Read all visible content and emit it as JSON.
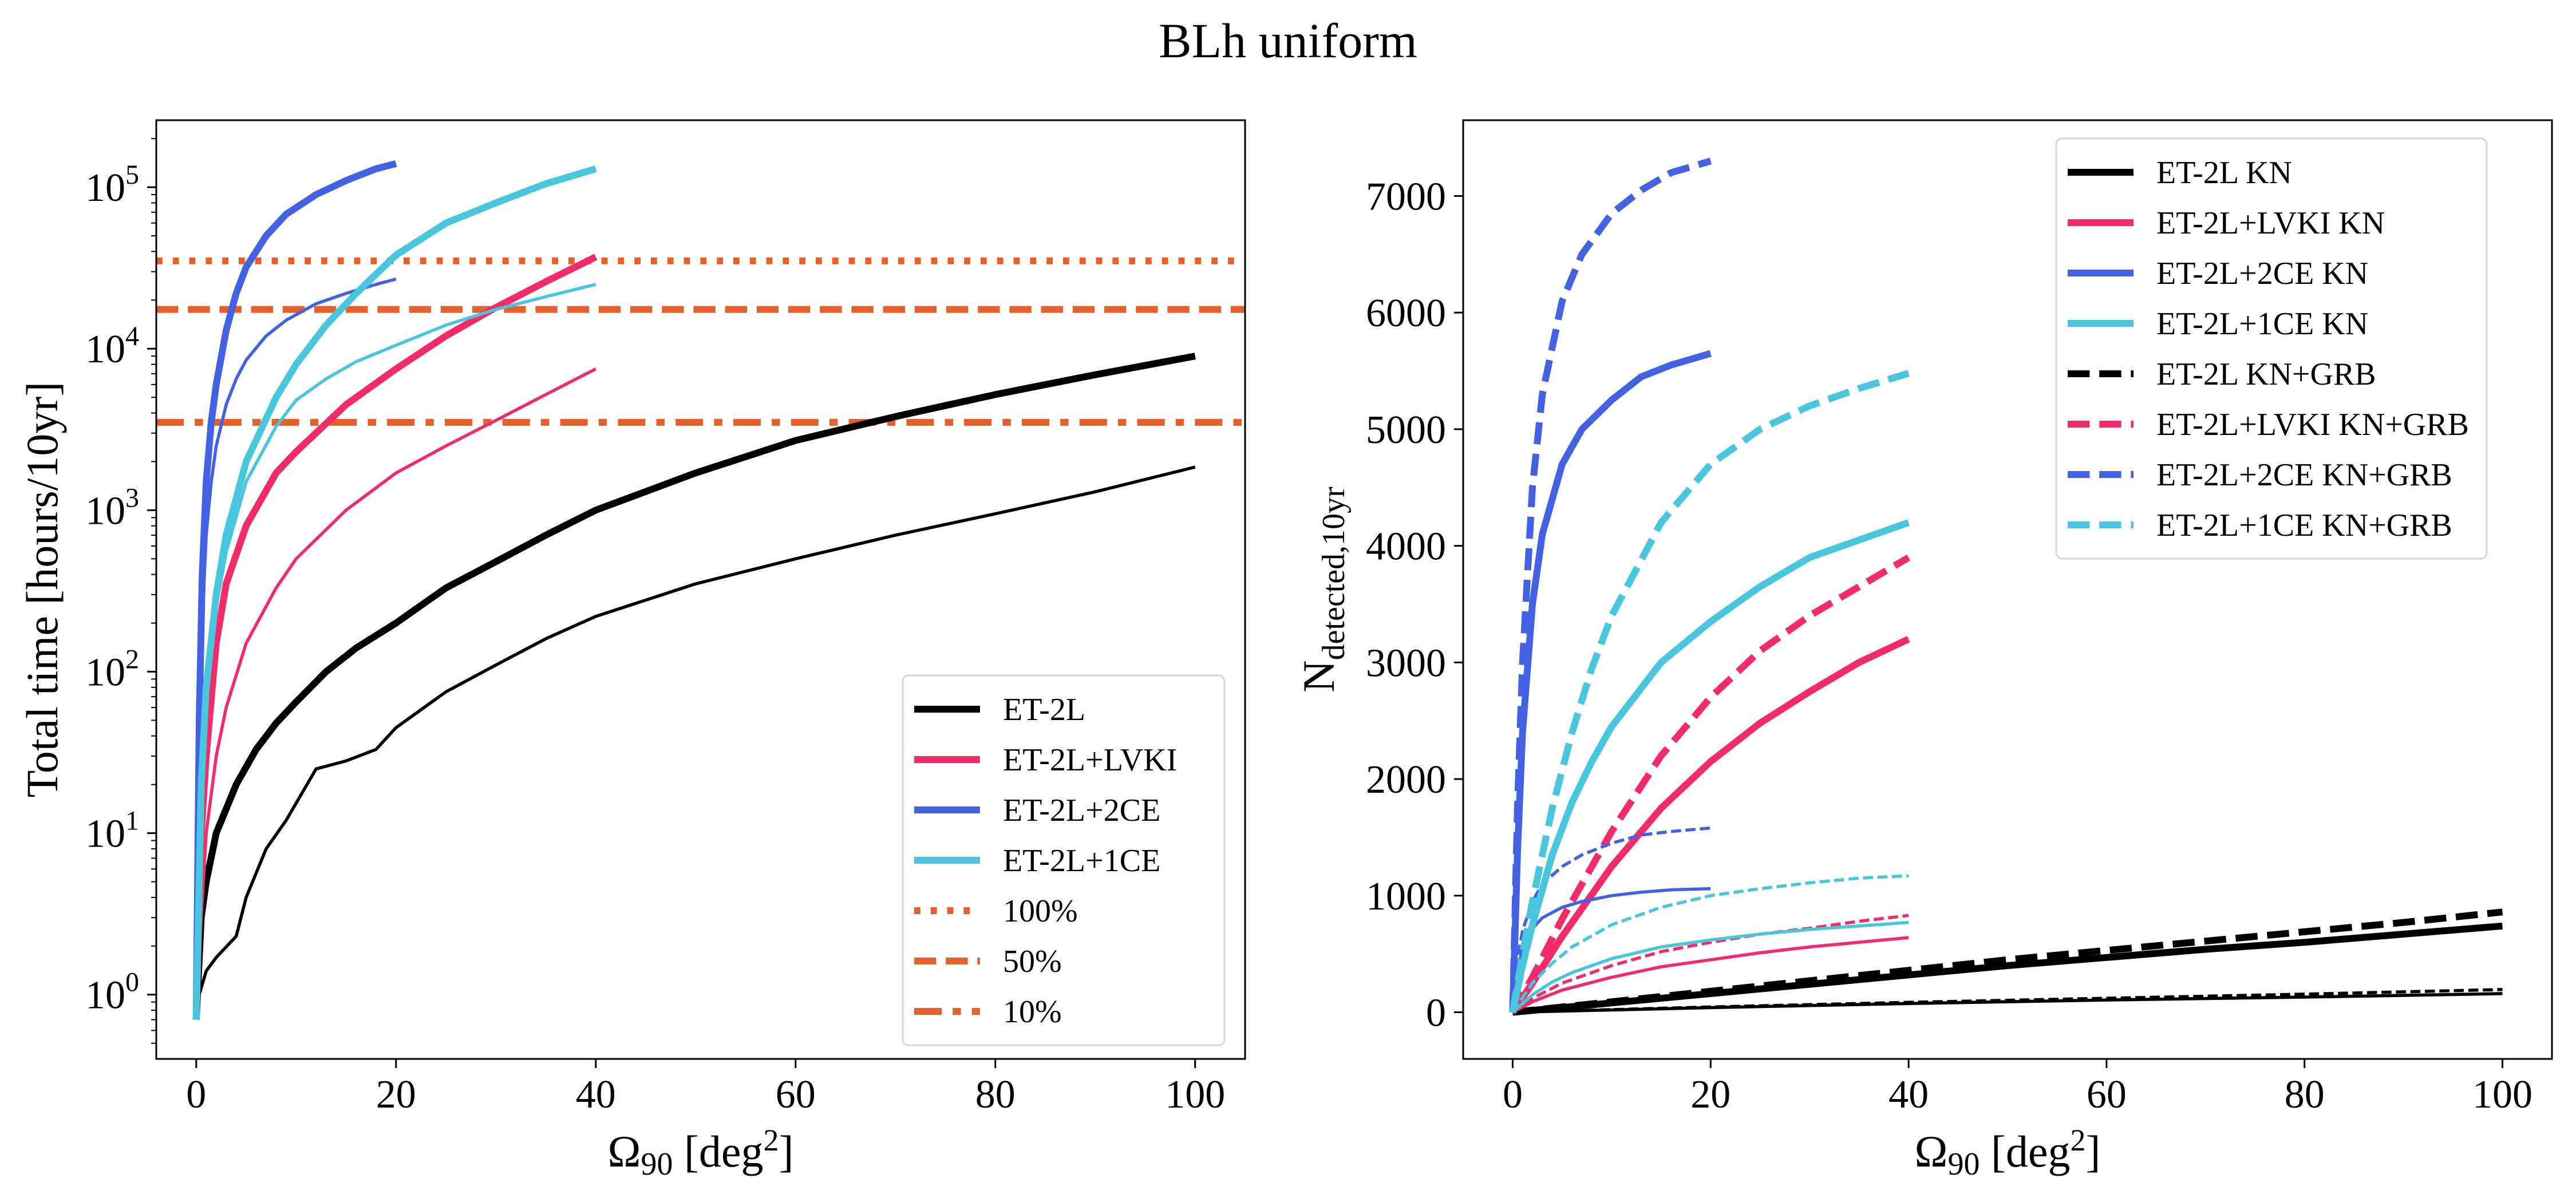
{
  "figure": {
    "title": "BLh uniform"
  },
  "colors": {
    "black": "#000000",
    "pink": "#f22c6a",
    "blue": "#4361e3",
    "cyan": "#48c6dd",
    "orange": "#e5602a"
  },
  "chart_data": [
    {
      "type": "line",
      "title": "",
      "xlabel": "Ω90 [deg²]",
      "ylabel": "Total time [hours/10yr]",
      "yscale": "log",
      "xlim": [
        -4,
        105
      ],
      "ylim": [
        0.4,
        260000
      ],
      "xticks": [
        0,
        20,
        40,
        60,
        80,
        100
      ],
      "xtick_labels": [
        "0",
        "20",
        "40",
        "60",
        "80",
        "100"
      ],
      "ytick_exponents": [
        0,
        1,
        2,
        3,
        4,
        5
      ],
      "legend": {
        "position": "lower right",
        "entries": [
          {
            "label": "ET-2L",
            "color": "black",
            "style": "solid"
          },
          {
            "label": "ET-2L+LVKI",
            "color": "pink",
            "style": "solid"
          },
          {
            "label": "ET-2L+2CE",
            "color": "blue",
            "style": "solid"
          },
          {
            "label": "ET-2L+1CE",
            "color": "cyan",
            "style": "solid"
          },
          {
            "label": "100%",
            "color": "orange",
            "style": "dotted"
          },
          {
            "label": "50%",
            "color": "orange",
            "style": "dashed"
          },
          {
            "label": "10%",
            "color": "orange",
            "style": "dashdot"
          }
        ]
      },
      "hlines": [
        {
          "name": "100%",
          "y": 35000,
          "color": "orange",
          "style": "dotted"
        },
        {
          "name": "50%",
          "y": 17500,
          "color": "orange",
          "style": "dashed"
        },
        {
          "name": "10%",
          "y": 3500,
          "color": "orange",
          "style": "dashdot"
        }
      ],
      "series": [
        {
          "name": "ET-2L (thick)",
          "color": "black",
          "style": "solid",
          "weight": "thick",
          "x": [
            0,
            0.5,
            1,
            2,
            4,
            6,
            8,
            10,
            13,
            16,
            20,
            25,
            30,
            35,
            40,
            50,
            60,
            70,
            80,
            90,
            100
          ],
          "y": [
            0.7,
            3,
            5,
            10,
            20,
            33,
            48,
            65,
            100,
            140,
            200,
            330,
            480,
            700,
            1000,
            1700,
            2700,
            3800,
            5200,
            6900,
            9000
          ]
        },
        {
          "name": "ET-2L (thin)",
          "color": "black",
          "style": "solid",
          "weight": "thin",
          "x": [
            0,
            0.3,
            1,
            2,
            4,
            5,
            7,
            9,
            12,
            15,
            18,
            20,
            25,
            30,
            35,
            40,
            50,
            60,
            70,
            80,
            90,
            100
          ],
          "y": [
            0.7,
            1,
            1.4,
            1.7,
            2.3,
            4,
            8,
            12,
            25,
            28,
            33,
            45,
            75,
            110,
            160,
            220,
            350,
            500,
            700,
            950,
            1300,
            1850
          ]
        },
        {
          "name": "ET-2L+LVKI (thick)",
          "color": "pink",
          "style": "solid",
          "weight": "thick",
          "x": [
            0,
            0.5,
            1,
            2,
            3,
            5,
            8,
            10,
            15,
            20,
            25,
            30,
            35,
            40
          ],
          "y": [
            0.7,
            10,
            30,
            150,
            350,
            800,
            1700,
            2300,
            4500,
            7500,
            12000,
            18000,
            26000,
            37000
          ]
        },
        {
          "name": "ET-2L+LVKI (thin)",
          "color": "pink",
          "style": "solid",
          "weight": "thin",
          "x": [
            0,
            0.5,
            1,
            2,
            3,
            5,
            8,
            10,
            15,
            20,
            25,
            30,
            35,
            40
          ],
          "y": [
            0.7,
            3,
            10,
            30,
            60,
            150,
            330,
            500,
            1000,
            1700,
            2500,
            3600,
            5200,
            7500
          ]
        },
        {
          "name": "ET-2L+2CE (thick)",
          "color": "blue",
          "style": "solid",
          "weight": "thick",
          "x": [
            0,
            0.3,
            0.6,
            1,
            1.5,
            2,
            3,
            4,
            5,
            7,
            9,
            12,
            15,
            18,
            20
          ],
          "y": [
            0.7,
            50,
            400,
            1500,
            3500,
            6000,
            13000,
            22000,
            32000,
            50000,
            68000,
            90000,
            110000,
            130000,
            140000
          ]
        },
        {
          "name": "ET-2L+2CE (thin)",
          "color": "blue",
          "style": "solid",
          "weight": "thin",
          "x": [
            0,
            0.3,
            0.6,
            1,
            1.5,
            2,
            3,
            4,
            5,
            7,
            9,
            12,
            15,
            18,
            20
          ],
          "y": [
            0.7,
            30,
            200,
            700,
            1500,
            2500,
            4500,
            6500,
            8500,
            12000,
            15000,
            19000,
            22000,
            25000,
            27000
          ]
        },
        {
          "name": "ET-2L+1CE (thick)",
          "color": "cyan",
          "style": "solid",
          "weight": "thick",
          "x": [
            0,
            0.5,
            1,
            2,
            3,
            5,
            8,
            10,
            13,
            16,
            20,
            25,
            30,
            35,
            40
          ],
          "y": [
            0.7,
            20,
            80,
            300,
            700,
            2000,
            5000,
            8000,
            14000,
            22000,
            38000,
            60000,
            80000,
            105000,
            130000
          ]
        },
        {
          "name": "ET-2L+1CE (thin)",
          "color": "cyan",
          "style": "solid",
          "weight": "thin",
          "x": [
            0,
            0.5,
            1,
            2,
            3,
            5,
            8,
            10,
            13,
            16,
            20,
            25,
            30,
            35,
            40
          ],
          "y": [
            0.7,
            15,
            60,
            250,
            550,
            1500,
            3300,
            4800,
            6500,
            8300,
            10500,
            14000,
            17500,
            21000,
            25000
          ]
        }
      ]
    },
    {
      "type": "line",
      "title": "",
      "xlabel": "Ω90 [deg²]",
      "ylabel": "N detected,10yr",
      "yscale": "linear",
      "xlim": [
        -5,
        105
      ],
      "ylim": [
        -400,
        7650
      ],
      "xticks": [
        0,
        20,
        40,
        60,
        80,
        100
      ],
      "xtick_labels": [
        "0",
        "20",
        "40",
        "60",
        "80",
        "100"
      ],
      "yticks": [
        0,
        1000,
        2000,
        3000,
        4000,
        5000,
        6000,
        7000
      ],
      "ytick_labels": [
        "0",
        "1000",
        "2000",
        "3000",
        "4000",
        "5000",
        "6000",
        "7000"
      ],
      "legend": {
        "position": "upper right",
        "entries": [
          {
            "label": "ET-2L KN",
            "color": "black",
            "style": "solid"
          },
          {
            "label": "ET-2L+LVKI KN",
            "color": "pink",
            "style": "solid"
          },
          {
            "label": "ET-2L+2CE KN",
            "color": "blue",
            "style": "solid"
          },
          {
            "label": "ET-2L+1CE KN",
            "color": "cyan",
            "style": "solid"
          },
          {
            "label": "ET-2L KN+GRB",
            "color": "black",
            "style": "dashed"
          },
          {
            "label": "ET-2L+LVKI KN+GRB",
            "color": "pink",
            "style": "dashed"
          },
          {
            "label": "ET-2L+2CE KN+GRB",
            "color": "blue",
            "style": "dashed"
          },
          {
            "label": "ET-2L+1CE KN+GRB",
            "color": "cyan",
            "style": "dashed"
          }
        ]
      },
      "series": [
        {
          "name": "ET-2L KN (thick)",
          "color": "black",
          "style": "solid",
          "weight": "thick",
          "x": [
            0,
            10,
            20,
            30,
            40,
            50,
            60,
            70,
            80,
            90,
            100
          ],
          "y": [
            0,
            80,
            160,
            240,
            320,
            400,
            470,
            540,
            600,
            670,
            740
          ]
        },
        {
          "name": "ET-2L KN (thin)",
          "color": "black",
          "style": "solid",
          "weight": "thin",
          "x": [
            0,
            20,
            40,
            60,
            80,
            100
          ],
          "y": [
            0,
            40,
            75,
            105,
            130,
            160
          ]
        },
        {
          "name": "ET-2L KN+GRB (thick)",
          "color": "black",
          "style": "dashed",
          "weight": "thick",
          "x": [
            0,
            10,
            20,
            30,
            40,
            50,
            60,
            70,
            80,
            90,
            100
          ],
          "y": [
            0,
            90,
            180,
            270,
            360,
            450,
            530,
            610,
            690,
            770,
            860
          ]
        },
        {
          "name": "ET-2L KN+GRB (thin)",
          "color": "black",
          "style": "dashed",
          "weight": "thin",
          "x": [
            0,
            20,
            40,
            60,
            80,
            100
          ],
          "y": [
            0,
            45,
            85,
            120,
            155,
            195
          ]
        },
        {
          "name": "ET-2L+LVKI KN (thick)",
          "color": "pink",
          "style": "solid",
          "weight": "thick",
          "x": [
            0,
            2,
            5,
            10,
            15,
            20,
            25,
            30,
            35,
            40
          ],
          "y": [
            0,
            250,
            650,
            1250,
            1750,
            2150,
            2480,
            2750,
            3000,
            3200
          ]
        },
        {
          "name": "ET-2L+LVKI KN (thin)",
          "color": "pink",
          "style": "solid",
          "weight": "thin",
          "x": [
            0,
            2,
            5,
            10,
            15,
            20,
            25,
            30,
            35,
            40
          ],
          "y": [
            0,
            90,
            190,
            300,
            390,
            450,
            510,
            560,
            600,
            640
          ]
        },
        {
          "name": "ET-2L+LVKI KN+GRB (thick)",
          "color": "pink",
          "style": "dashed",
          "weight": "thick",
          "x": [
            0,
            2,
            5,
            10,
            15,
            20,
            25,
            30,
            35,
            40
          ],
          "y": [
            0,
            300,
            800,
            1550,
            2200,
            2700,
            3100,
            3400,
            3650,
            3900
          ]
        },
        {
          "name": "ET-2L+LVKI KN+GRB (thin)",
          "color": "pink",
          "style": "dashed",
          "weight": "thin",
          "x": [
            0,
            2,
            5,
            10,
            15,
            20,
            25,
            30,
            35,
            40
          ],
          "y": [
            0,
            120,
            250,
            400,
            520,
            600,
            670,
            720,
            780,
            830
          ]
        },
        {
          "name": "ET-2L+2CE KN (thick)",
          "color": "blue",
          "style": "solid",
          "weight": "thick",
          "x": [
            0,
            0.5,
            1,
            2,
            3,
            5,
            7,
            10,
            13,
            16,
            20
          ],
          "y": [
            0,
            1400,
            2400,
            3500,
            4100,
            4700,
            5000,
            5250,
            5450,
            5550,
            5650
          ]
        },
        {
          "name": "ET-2L+2CE KN (thin)",
          "color": "blue",
          "style": "solid",
          "weight": "thin",
          "x": [
            0,
            0.5,
            1,
            2,
            3,
            5,
            7,
            10,
            13,
            16,
            20
          ],
          "y": [
            0,
            350,
            550,
            720,
            810,
            900,
            950,
            1000,
            1030,
            1050,
            1060
          ]
        },
        {
          "name": "ET-2L+2CE KN+GRB (thick)",
          "color": "blue",
          "style": "dashed",
          "weight": "thick",
          "x": [
            0,
            0.5,
            1,
            2,
            3,
            5,
            7,
            10,
            13,
            16,
            20
          ],
          "y": [
            0,
            1800,
            3000,
            4500,
            5300,
            6100,
            6500,
            6850,
            7050,
            7200,
            7300
          ]
        },
        {
          "name": "ET-2L+2CE KN+GRB (thin)",
          "color": "blue",
          "style": "dashed",
          "weight": "thin",
          "x": [
            0,
            0.5,
            1,
            2,
            3,
            5,
            7,
            10,
            13,
            16,
            20
          ],
          "y": [
            0,
            450,
            700,
            950,
            1100,
            1250,
            1350,
            1450,
            1520,
            1550,
            1580
          ]
        },
        {
          "name": "ET-2L+1CE KN (thick)",
          "color": "cyan",
          "style": "solid",
          "weight": "thick",
          "x": [
            0,
            1,
            2,
            4,
            6,
            8,
            10,
            15,
            20,
            25,
            30,
            35,
            40
          ],
          "y": [
            0,
            400,
            750,
            1350,
            1800,
            2150,
            2450,
            3000,
            3350,
            3650,
            3900,
            4050,
            4200
          ]
        },
        {
          "name": "ET-2L+1CE KN (thin)",
          "color": "cyan",
          "style": "solid",
          "weight": "thin",
          "x": [
            0,
            2,
            4,
            6,
            10,
            15,
            20,
            25,
            30,
            35,
            40
          ],
          "y": [
            0,
            150,
            260,
            340,
            460,
            560,
            620,
            670,
            710,
            740,
            770
          ]
        },
        {
          "name": "ET-2L+1CE KN+GRB (thick)",
          "color": "cyan",
          "style": "dashed",
          "weight": "thick",
          "x": [
            0,
            1,
            2,
            4,
            6,
            8,
            10,
            15,
            20,
            25,
            30,
            35,
            40
          ],
          "y": [
            0,
            500,
            950,
            1750,
            2400,
            2950,
            3400,
            4200,
            4700,
            5000,
            5200,
            5350,
            5480
          ]
        },
        {
          "name": "ET-2L+1CE KN+GRB (thin)",
          "color": "cyan",
          "style": "dashed",
          "weight": "thin",
          "x": [
            0,
            2,
            4,
            6,
            10,
            15,
            20,
            25,
            30,
            35,
            40
          ],
          "y": [
            0,
            250,
            420,
            560,
            750,
            900,
            1000,
            1060,
            1110,
            1150,
            1170
          ]
        }
      ]
    }
  ]
}
